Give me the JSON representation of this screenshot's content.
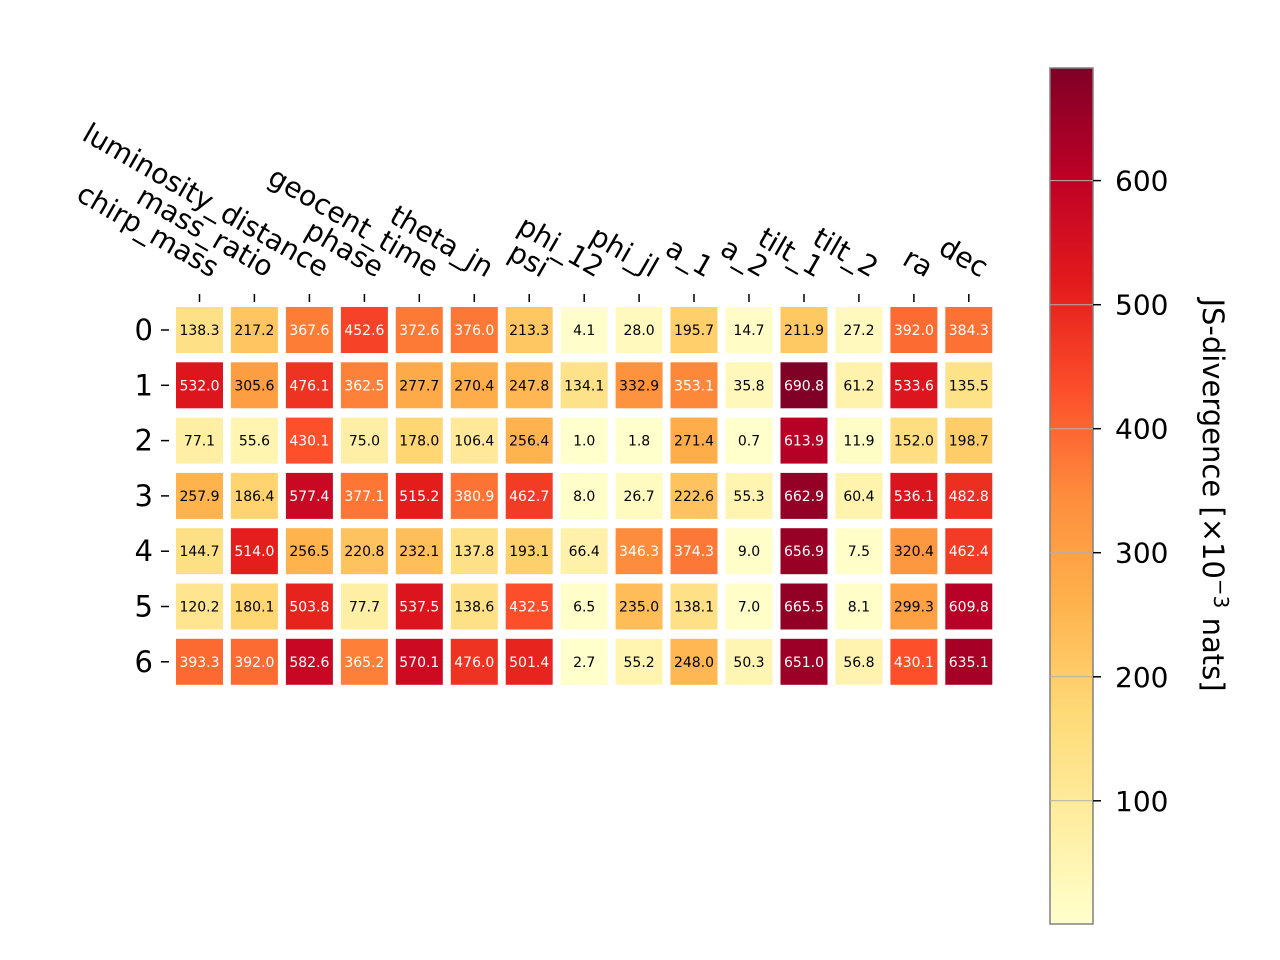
{
  "chart_data": {
    "type": "heatmap",
    "title": "",
    "columns": [
      "chirp_mass",
      "mass_ratio",
      "luminosity_distance",
      "phase",
      "geocent_time",
      "theta_jn",
      "psi",
      "phi_12",
      "phi_jl",
      "a_1",
      "a_2",
      "tilt_1",
      "tilt_2",
      "ra",
      "dec"
    ],
    "rows": [
      "0",
      "1",
      "2",
      "3",
      "4",
      "5",
      "6"
    ],
    "values": [
      [
        138.3,
        217.2,
        367.6,
        452.6,
        372.6,
        376.0,
        213.3,
        4.1,
        28.0,
        195.7,
        14.7,
        211.9,
        27.2,
        392.0,
        384.3
      ],
      [
        532.0,
        305.6,
        476.1,
        362.5,
        277.7,
        270.4,
        247.8,
        134.1,
        332.9,
        353.1,
        35.8,
        690.8,
        61.2,
        533.6,
        135.5
      ],
      [
        77.1,
        55.6,
        430.1,
        75.0,
        178.0,
        106.4,
        256.4,
        1.0,
        1.8,
        271.4,
        0.7,
        613.9,
        11.9,
        152.0,
        198.7
      ],
      [
        257.9,
        186.4,
        577.4,
        377.1,
        515.2,
        380.9,
        462.7,
        8.0,
        26.7,
        222.6,
        55.3,
        662.9,
        60.4,
        536.1,
        482.8
      ],
      [
        144.7,
        514.0,
        256.5,
        220.8,
        232.1,
        137.8,
        193.1,
        66.4,
        346.3,
        374.3,
        9.0,
        656.9,
        7.5,
        320.4,
        462.4
      ],
      [
        120.2,
        180.1,
        503.8,
        77.7,
        537.5,
        138.6,
        432.5,
        6.5,
        235.0,
        138.1,
        7.0,
        665.5,
        8.1,
        299.3,
        609.8
      ],
      [
        393.3,
        392.0,
        582.6,
        365.2,
        570.1,
        476.0,
        501.4,
        2.7,
        55.2,
        248.0,
        50.3,
        651.0,
        56.8,
        430.1,
        635.1
      ]
    ],
    "colorbar": {
      "label": "JS-divergence [×10",
      "label_exponent": "−3",
      "label_suffix": " nats]",
      "range": [
        0.7,
        690.8
      ],
      "ticks": [
        100,
        200,
        300,
        400,
        500,
        600
      ],
      "tick_labels": [
        "100",
        "200",
        "300",
        "400",
        "500",
        "600"
      ],
      "colormap_stops": [
        "#ffffcc",
        "#ffeda0",
        "#fed976",
        "#feb24c",
        "#fd8d3c",
        "#fc4e2a",
        "#e31a1c",
        "#bd0026",
        "#800026"
      ]
    },
    "grid": false,
    "legend": "colorbar-right"
  }
}
